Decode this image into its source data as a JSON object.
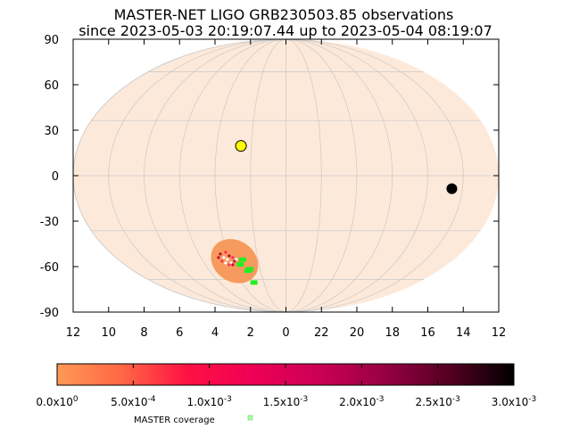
{
  "chart_data": {
    "type": "scatter",
    "projection": "mollweide",
    "title": "MASTER-NET LIGO GRB230503.85 observations",
    "subtitle": "since 2023-05-03 20:19:07.44 up to 2023-05-04 08:19:07",
    "ylim": [
      -90,
      90
    ],
    "y_ticks": [
      90,
      60,
      30,
      0,
      -30,
      -60,
      -90
    ],
    "x_ticks": [
      "12",
      "10",
      "8",
      "6",
      "4",
      "2",
      "0",
      "22",
      "20",
      "18",
      "16",
      "14",
      "12"
    ],
    "grid": true,
    "colors": {
      "sky_fill": "#fde9da",
      "grid": "#c8c8c8",
      "probability_region": "#f79a5e",
      "coverage": "#22ee22",
      "sun": "#ffff00",
      "moon": "#000000"
    },
    "markers": {
      "sun": {
        "ra_hours": 2.6,
        "dec": 16
      },
      "moon": {
        "ra_hours": 14.6,
        "dec": -7
      }
    },
    "probability_region": {
      "ra_hours": 3.9,
      "dec": -49
    },
    "coverage_points": [
      {
        "ra_hours": 3.1,
        "dec": -47
      },
      {
        "ra_hours": 3.4,
        "dec": -50
      },
      {
        "ra_hours": 3.0,
        "dec": -54
      },
      {
        "ra_hours": 2.8,
        "dec": -53
      },
      {
        "ra_hours": 2.9,
        "dec": -62
      }
    ],
    "colorbar": {
      "min": 0,
      "max": 0.003,
      "stops": [
        "#ff9955",
        "#ff6644",
        "#ff1144",
        "#ee0055",
        "#cc0055",
        "#990044",
        "#550022",
        "#000000"
      ],
      "tick_labels": [
        "0.0x10^0",
        "5.0x10^-4",
        "1.0x10^-3",
        "1.5x10^-3",
        "2.0x10^-3",
        "2.5x10^-3",
        "3.0x10^-3"
      ]
    },
    "legend": {
      "label": "MASTER coverage",
      "placement": "bottom"
    }
  }
}
